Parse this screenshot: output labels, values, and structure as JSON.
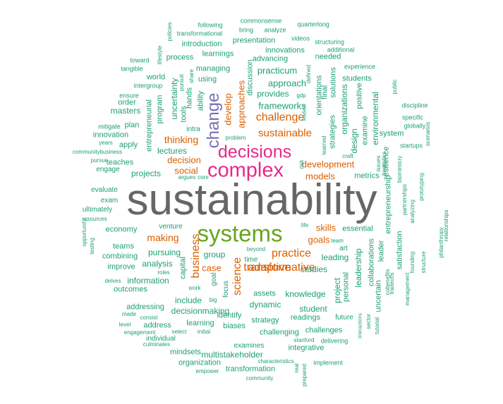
{
  "colors": {
    "teal": "#1b9e77",
    "orange": "#d95f02",
    "purple": "#7570b3",
    "magenta": "#e7298a",
    "green": "#66a61e",
    "grey": "#666666"
  },
  "words": [
    {
      "text": "sustainability",
      "color": "grey"
    },
    {
      "text": "systems",
      "color": "green"
    },
    {
      "text": "complex",
      "color": "magenta"
    },
    {
      "text": "decisions",
      "color": "magenta"
    },
    {
      "text": "change",
      "color": "purple"
    },
    {
      "text": "transformative",
      "color": "orange"
    },
    {
      "text": "sustainable",
      "color": "orange"
    },
    {
      "text": "challenge",
      "color": "orange"
    },
    {
      "text": "practice",
      "color": "orange"
    },
    {
      "text": "adaptive",
      "color": "orange"
    },
    {
      "text": "science",
      "color": "orange"
    },
    {
      "text": "business",
      "color": "orange"
    },
    {
      "text": "development",
      "color": "orange"
    },
    {
      "text": "thinking",
      "color": "orange"
    },
    {
      "text": "decision",
      "color": "orange"
    },
    {
      "text": "social",
      "color": "orange"
    },
    {
      "text": "models",
      "color": "orange"
    },
    {
      "text": "making",
      "color": "orange"
    },
    {
      "text": "skills",
      "color": "orange"
    },
    {
      "text": "goals",
      "color": "orange"
    },
    {
      "text": "approaches",
      "color": "orange"
    },
    {
      "text": "develop",
      "color": "orange"
    },
    {
      "text": "case",
      "color": "orange"
    },
    {
      "text": "frameworks",
      "color": "teal"
    },
    {
      "text": "approach",
      "color": "teal"
    },
    {
      "text": "provides",
      "color": "teal"
    },
    {
      "text": "practicum",
      "color": "teal"
    },
    {
      "text": "advancing",
      "color": "teal"
    },
    {
      "text": "innovations",
      "color": "teal"
    },
    {
      "text": "presentation",
      "color": "teal"
    },
    {
      "text": "introduction",
      "color": "teal"
    },
    {
      "text": "learnings",
      "color": "teal"
    },
    {
      "text": "process",
      "color": "teal"
    },
    {
      "text": "managing",
      "color": "teal"
    },
    {
      "text": "using",
      "color": "teal"
    },
    {
      "text": "discussion",
      "color": "teal"
    },
    {
      "text": "world",
      "color": "teal"
    },
    {
      "text": "uncertainty",
      "color": "teal"
    },
    {
      "text": "hands",
      "color": "teal"
    },
    {
      "text": "ability",
      "color": "teal"
    },
    {
      "text": "program",
      "color": "teal"
    },
    {
      "text": "tools",
      "color": "teal"
    },
    {
      "text": "intra",
      "color": "teal"
    },
    {
      "text": "entrepreneurial",
      "color": "teal"
    },
    {
      "text": "lectures",
      "color": "teal"
    },
    {
      "text": "projects",
      "color": "teal"
    },
    {
      "text": "teaches",
      "color": "teal"
    },
    {
      "text": "engage",
      "color": "teal"
    },
    {
      "text": "evaluate",
      "color": "teal"
    },
    {
      "text": "exam",
      "color": "teal"
    },
    {
      "text": "ultimately",
      "color": "teal"
    },
    {
      "text": "economy",
      "color": "teal"
    },
    {
      "text": "teams",
      "color": "teal"
    },
    {
      "text": "combining",
      "color": "teal"
    },
    {
      "text": "improve",
      "color": "teal"
    },
    {
      "text": "information",
      "color": "teal"
    },
    {
      "text": "outcomes",
      "color": "teal"
    },
    {
      "text": "addressing",
      "color": "teal"
    },
    {
      "text": "address",
      "color": "teal"
    },
    {
      "text": "individual",
      "color": "teal"
    },
    {
      "text": "mindsets",
      "color": "teal"
    },
    {
      "text": "organization",
      "color": "teal"
    },
    {
      "text": "multistakeholder",
      "color": "teal"
    },
    {
      "text": "transformation",
      "color": "teal"
    },
    {
      "text": "pursuing",
      "color": "teal"
    },
    {
      "text": "analysis",
      "color": "teal"
    },
    {
      "text": "venture",
      "color": "teal"
    },
    {
      "text": "capital",
      "color": "teal"
    },
    {
      "text": "include",
      "color": "teal"
    },
    {
      "text": "decisionmaking",
      "color": "teal"
    },
    {
      "text": "learning",
      "color": "teal"
    },
    {
      "text": "group",
      "color": "teal"
    },
    {
      "text": "focus",
      "color": "teal"
    },
    {
      "text": "identify",
      "color": "teal"
    },
    {
      "text": "biases",
      "color": "teal"
    },
    {
      "text": "examines",
      "color": "teal"
    },
    {
      "text": "dynamic",
      "color": "teal"
    },
    {
      "text": "assets",
      "color": "teal"
    },
    {
      "text": "knowledge",
      "color": "teal"
    },
    {
      "text": "strategy",
      "color": "teal"
    },
    {
      "text": "challenging",
      "color": "teal"
    },
    {
      "text": "student",
      "color": "teal"
    },
    {
      "text": "readings",
      "color": "teal"
    },
    {
      "text": "challenges",
      "color": "teal"
    },
    {
      "text": "integrative",
      "color": "teal"
    },
    {
      "text": "studies",
      "color": "teal"
    },
    {
      "text": "leading",
      "color": "teal"
    },
    {
      "text": "essential",
      "color": "teal"
    },
    {
      "text": "project",
      "color": "teal"
    },
    {
      "text": "personal",
      "color": "teal"
    },
    {
      "text": "leadership",
      "color": "teal"
    },
    {
      "text": "future",
      "color": "teal"
    },
    {
      "text": "metrics",
      "color": "teal"
    },
    {
      "text": "strategies",
      "color": "teal"
    },
    {
      "text": "design",
      "color": "teal"
    },
    {
      "text": "organizations",
      "color": "teal"
    },
    {
      "text": "students",
      "color": "teal"
    },
    {
      "text": "needed",
      "color": "teal"
    },
    {
      "text": "examine",
      "color": "teal"
    },
    {
      "text": "environmental",
      "color": "teal"
    },
    {
      "text": "positive",
      "color": "teal"
    },
    {
      "text": "system",
      "color": "teal"
    },
    {
      "text": "resilience",
      "color": "teal"
    },
    {
      "text": "entrepreneurship",
      "color": "teal"
    },
    {
      "text": "satisfaction",
      "color": "teal"
    },
    {
      "text": "collaborations",
      "color": "teal"
    },
    {
      "text": "leader",
      "color": "teal"
    },
    {
      "text": "uncertain",
      "color": "teal"
    },
    {
      "text": "masters",
      "color": "teal"
    },
    {
      "text": "order",
      "color": "teal"
    },
    {
      "text": "innovation",
      "color": "teal"
    },
    {
      "text": "apply",
      "color": "teal"
    },
    {
      "text": "plan",
      "color": "teal"
    },
    {
      "text": "final",
      "color": "teal"
    },
    {
      "text": "solutions",
      "color": "teal"
    },
    {
      "text": "orientations",
      "color": "teal"
    },
    {
      "text": "art",
      "color": "teal"
    },
    {
      "text": "following",
      "color": "teal"
    },
    {
      "text": "transformational",
      "color": "teal"
    },
    {
      "text": "commonsense",
      "color": "teal"
    },
    {
      "text": "bring",
      "color": "teal"
    },
    {
      "text": "analyze",
      "color": "teal"
    },
    {
      "text": "quarterlong",
      "color": "teal"
    },
    {
      "text": "videos",
      "color": "teal"
    },
    {
      "text": "structuring",
      "color": "teal"
    },
    {
      "text": "additional",
      "color": "teal"
    },
    {
      "text": "experience",
      "color": "teal"
    },
    {
      "text": "public",
      "color": "teal"
    },
    {
      "text": "discipline",
      "color": "teal"
    },
    {
      "text": "specific",
      "color": "teal"
    },
    {
      "text": "globally",
      "color": "teal"
    },
    {
      "text": "scenarios",
      "color": "teal"
    },
    {
      "text": "startups",
      "color": "teal"
    },
    {
      "text": "biomimicry",
      "color": "teal"
    },
    {
      "text": "prototyping",
      "color": "teal"
    },
    {
      "text": "partnerships",
      "color": "teal"
    },
    {
      "text": "heuristics",
      "color": "teal"
    },
    {
      "text": "issues",
      "color": "teal"
    },
    {
      "text": "craft",
      "color": "teal"
    },
    {
      "text": "toward",
      "color": "teal"
    },
    {
      "text": "tangible",
      "color": "teal"
    },
    {
      "text": "intergroup",
      "color": "teal"
    },
    {
      "text": "ensure",
      "color": "teal"
    },
    {
      "text": "mitigate",
      "color": "teal"
    },
    {
      "text": "years",
      "color": "teal"
    },
    {
      "text": "communitybusiness",
      "color": "teal"
    },
    {
      "text": "resources",
      "color": "teal"
    },
    {
      "text": "policies",
      "color": "teal"
    },
    {
      "text": "lifestyle",
      "color": "teal"
    },
    {
      "text": "pursuit",
      "color": "teal"
    },
    {
      "text": "share",
      "color": "teal"
    },
    {
      "text": "problem",
      "color": "teal"
    },
    {
      "text": "argues",
      "color": "teal"
    },
    {
      "text": "core",
      "color": "teal"
    },
    {
      "text": "gdp",
      "color": "teal"
    },
    {
      "text": "defined",
      "color": "teal"
    },
    {
      "text": "leaders",
      "color": "teal"
    },
    {
      "text": "learned",
      "color": "teal"
    },
    {
      "text": "risk",
      "color": "teal"
    },
    {
      "text": "life",
      "color": "teal"
    },
    {
      "text": "team",
      "color": "teal"
    },
    {
      "text": "beyond",
      "color": "teal"
    },
    {
      "text": "time",
      "color": "teal"
    },
    {
      "text": "goal",
      "color": "teal"
    },
    {
      "text": "roles",
      "color": "teal"
    },
    {
      "text": "delves",
      "color": "teal"
    },
    {
      "text": "made",
      "color": "teal"
    },
    {
      "text": "consist",
      "color": "teal"
    },
    {
      "text": "level",
      "color": "teal"
    },
    {
      "text": "engagement",
      "color": "teal"
    },
    {
      "text": "culminates",
      "color": "teal"
    },
    {
      "text": "work",
      "color": "teal"
    },
    {
      "text": "big",
      "color": "teal"
    },
    {
      "text": "select",
      "color": "teal"
    },
    {
      "text": "initial",
      "color": "teal"
    },
    {
      "text": "empower",
      "color": "teal"
    },
    {
      "text": "characteristics",
      "color": "teal"
    },
    {
      "text": "community",
      "color": "teal"
    },
    {
      "text": "real",
      "color": "teal"
    },
    {
      "text": "prepared",
      "color": "teal"
    },
    {
      "text": "implement",
      "color": "teal"
    },
    {
      "text": "stanford",
      "color": "teal"
    },
    {
      "text": "delivering",
      "color": "teal"
    },
    {
      "text": "interactions",
      "color": "teal"
    },
    {
      "text": "sector",
      "color": "teal"
    },
    {
      "text": "tutorial",
      "color": "teal"
    },
    {
      "text": "cobenefits",
      "color": "teal"
    },
    {
      "text": "management",
      "color": "teal"
    },
    {
      "text": "founding",
      "color": "teal"
    },
    {
      "text": "structure",
      "color": "teal"
    },
    {
      "text": "philanthropy",
      "color": "teal"
    },
    {
      "text": "relationships",
      "color": "teal"
    },
    {
      "text": "analyzing",
      "color": "teal"
    },
    {
      "text": "tradeoffs",
      "color": "teal"
    },
    {
      "text": "opportunity",
      "color": "teal"
    },
    {
      "text": "testing",
      "color": "teal"
    },
    {
      "text": "pursue",
      "color": "teal"
    }
  ]
}
